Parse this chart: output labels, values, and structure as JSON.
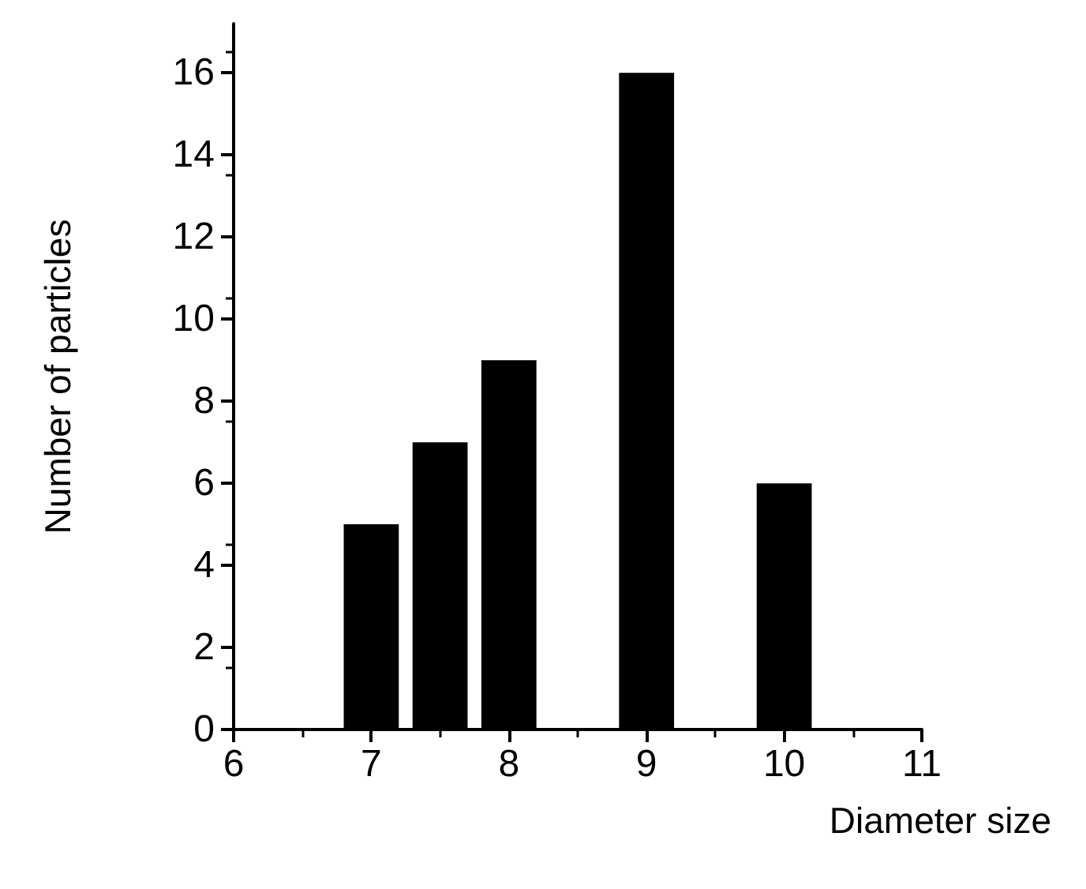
{
  "chart_data": {
    "type": "bar",
    "xlabel": "Diameter size",
    "ylabel": "Number of particles",
    "x": [
      7,
      7.5,
      8,
      9,
      10
    ],
    "values": [
      5,
      7,
      9,
      16,
      6
    ],
    "color": "#000000",
    "xlim": [
      6,
      11
    ],
    "xticks": [
      6,
      7,
      8,
      9,
      10,
      11
    ],
    "ylim": [
      0,
      17.2
    ],
    "yticks": [
      0,
      2,
      4,
      6,
      8,
      10,
      12,
      14,
      16
    ],
    "grid": false
  }
}
